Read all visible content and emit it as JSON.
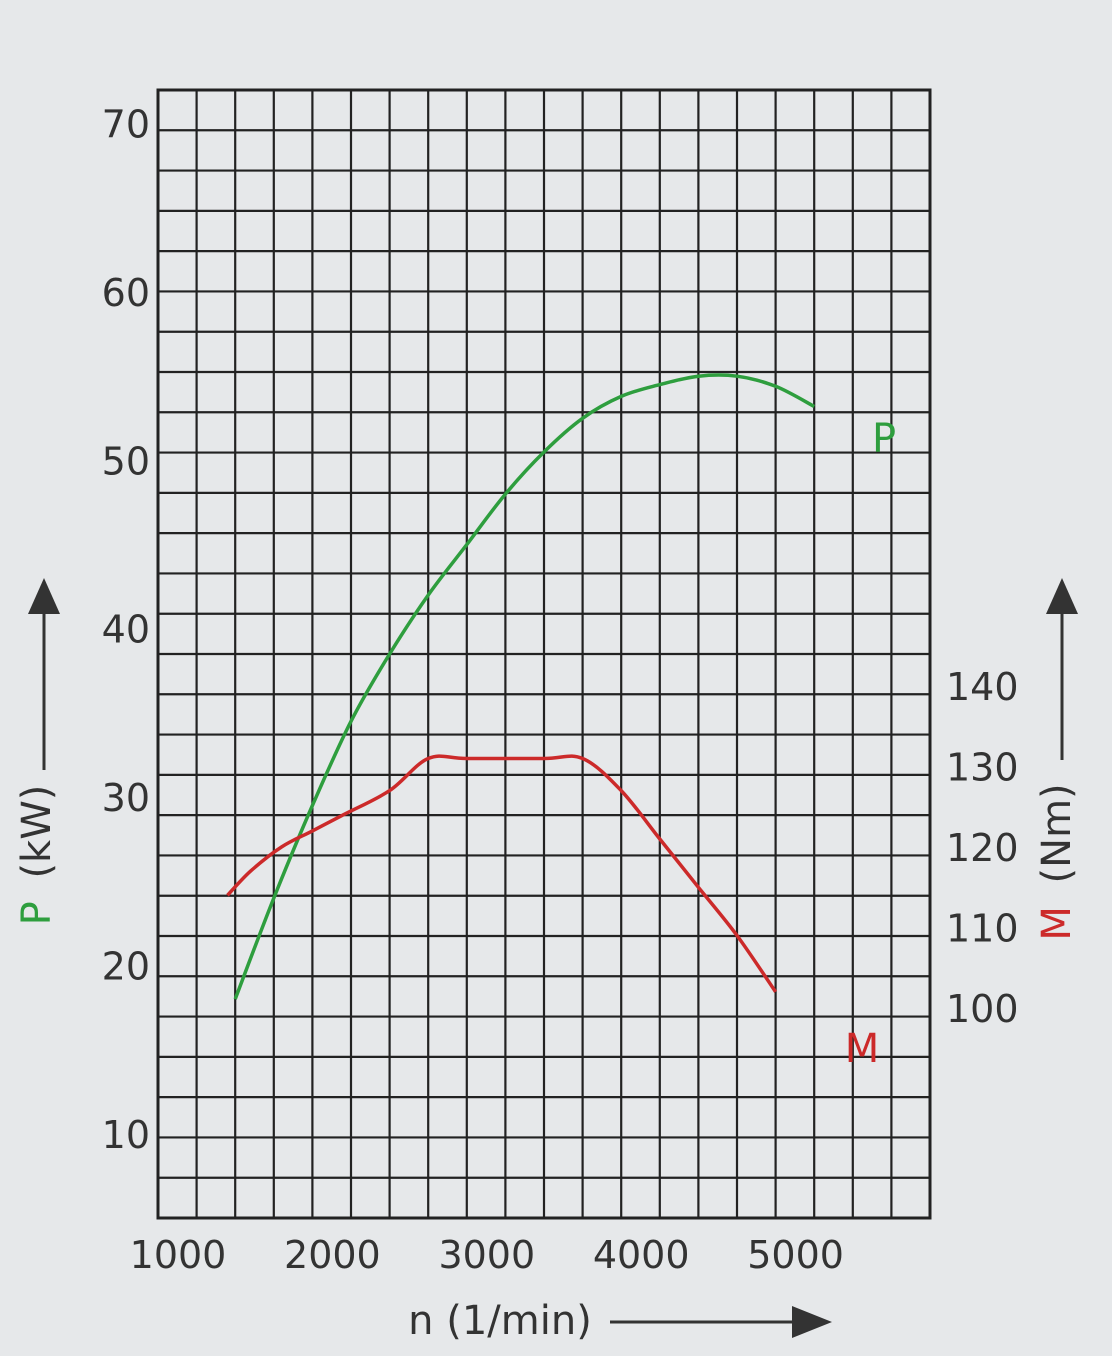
{
  "chart_data": {
    "type": "line",
    "title": "",
    "xlabel": "n (1/min)",
    "ylabel_left": {
      "symbol": "P",
      "unit": "(kW)"
    },
    "ylabel_right": {
      "symbol": "M",
      "unit": "(Nm)"
    },
    "x_ticks": [
      1000,
      2000,
      3000,
      4000,
      5000
    ],
    "y_left_ticks": [
      10,
      20,
      30,
      40,
      50,
      60,
      70
    ],
    "y_right_ticks": [
      100,
      110,
      120,
      130,
      140
    ],
    "xlim": [
      1000,
      6000
    ],
    "ylim_left": [
      5,
      72
    ],
    "ylim_right": [
      100,
      140
    ],
    "grid": true,
    "series": [
      {
        "name": "P",
        "axis": "left",
        "color": "#2e9e3e",
        "x": [
          1500,
          1750,
          2000,
          2250,
          2500,
          2750,
          3000,
          3250,
          3500,
          3750,
          4000,
          4250,
          4500,
          4750,
          5000,
          5250
        ],
        "y": [
          18,
          24,
          29.5,
          34.5,
          38.5,
          42,
          45,
          48,
          50.5,
          52.5,
          53.8,
          54.5,
          55,
          55,
          54.4,
          53.2
        ]
      },
      {
        "name": "M",
        "axis": "right",
        "color": "#cc2a2a",
        "x": [
          1450,
          1600,
          1800,
          2000,
          2200,
          2500,
          2750,
          3000,
          3500,
          3750,
          4000,
          4250,
          4500,
          4750,
          5000
        ],
        "y": [
          114,
          117,
          120,
          122,
          124,
          127,
          131,
          131,
          131,
          131,
          127,
          121,
          115,
          109,
          102
        ]
      }
    ]
  }
}
